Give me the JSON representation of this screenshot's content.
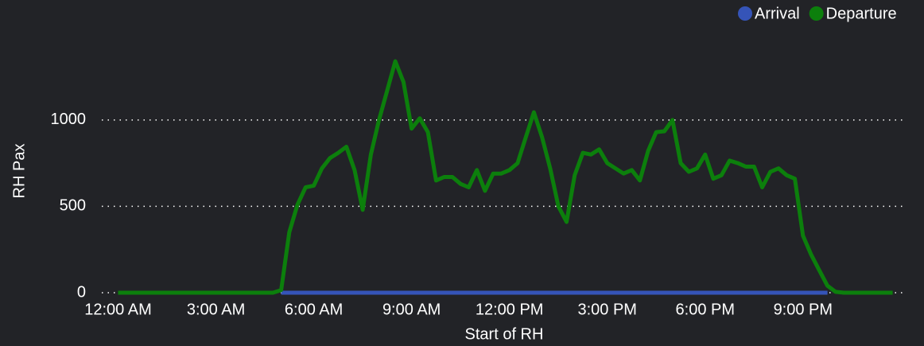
{
  "chart_data": {
    "type": "line",
    "x_label": "Start of RH",
    "y_label": "RH Pax",
    "x": [
      0,
      0.25,
      0.5,
      0.75,
      1,
      1.25,
      1.5,
      1.75,
      2,
      2.25,
      2.5,
      2.75,
      3,
      3.25,
      3.5,
      3.75,
      4,
      4.25,
      4.5,
      4.75,
      5,
      5.25,
      5.5,
      5.75,
      6,
      6.25,
      6.5,
      6.75,
      7,
      7.25,
      7.5,
      7.75,
      8,
      8.25,
      8.5,
      8.75,
      9,
      9.25,
      9.5,
      9.75,
      10,
      10.25,
      10.5,
      10.75,
      11,
      11.25,
      11.5,
      11.75,
      12,
      12.25,
      12.5,
      12.75,
      13,
      13.25,
      13.5,
      13.75,
      14,
      14.25,
      14.5,
      14.75,
      15,
      15.25,
      15.5,
      15.75,
      16,
      16.25,
      16.5,
      16.75,
      17,
      17.25,
      17.5,
      17.75,
      18,
      18.25,
      18.5,
      18.75,
      19,
      19.25,
      19.5,
      19.75,
      20,
      20.25,
      20.5,
      20.75,
      21,
      21.25,
      21.5,
      21.75,
      22,
      22.25,
      22.5,
      22.75,
      23,
      23.25,
      23.5,
      23.75
    ],
    "series": [
      {
        "name": "Arrival",
        "color": "#3554b8",
        "values": [
          null,
          null,
          null,
          null,
          null,
          null,
          null,
          null,
          null,
          null,
          null,
          null,
          null,
          null,
          null,
          null,
          null,
          null,
          null,
          null,
          0,
          0,
          0,
          0,
          0,
          0,
          0,
          0,
          0,
          0,
          0,
          0,
          0,
          0,
          0,
          0,
          0,
          0,
          0,
          0,
          0,
          0,
          0,
          0,
          0,
          0,
          0,
          0,
          0,
          0,
          0,
          0,
          0,
          0,
          0,
          0,
          0,
          0,
          0,
          0,
          0,
          0,
          0,
          0,
          0,
          0,
          0,
          0,
          0,
          0,
          0,
          0,
          0,
          0,
          0,
          0,
          0,
          0,
          0,
          0,
          0,
          0,
          0,
          0,
          0,
          0,
          0,
          0,
          null,
          null,
          null,
          null,
          null,
          null,
          null,
          null
        ]
      },
      {
        "name": "Departure",
        "color": "#0c7f0c",
        "values": [
          0,
          0,
          0,
          0,
          0,
          0,
          0,
          0,
          0,
          0,
          0,
          0,
          0,
          0,
          0,
          0,
          0,
          0,
          0,
          0,
          15,
          350,
          510,
          610,
          620,
          720,
          780,
          810,
          845,
          710,
          480,
          800,
          1000,
          1170,
          1340,
          1220,
          950,
          1010,
          930,
          650,
          670,
          670,
          630,
          610,
          710,
          590,
          690,
          690,
          710,
          750,
          900,
          1045,
          900,
          720,
          500,
          410,
          680,
          810,
          800,
          830,
          750,
          720,
          690,
          710,
          650,
          820,
          930,
          935,
          1000,
          750,
          700,
          720,
          800,
          660,
          680,
          765,
          750,
          730,
          730,
          610,
          700,
          720,
          680,
          660,
          330,
          220,
          130,
          40,
          5,
          0,
          0,
          0,
          0,
          0,
          0,
          0
        ]
      }
    ],
    "xlim": [
      -0.5,
      24.15
    ],
    "xticks": [
      {
        "value": 0,
        "label": "12:00 AM"
      },
      {
        "value": 3,
        "label": "3:00 AM"
      },
      {
        "value": 6,
        "label": "6:00 AM"
      },
      {
        "value": 9,
        "label": "9:00 AM"
      },
      {
        "value": 12,
        "label": "12:00 PM"
      },
      {
        "value": 15,
        "label": "3:00 PM"
      },
      {
        "value": 18,
        "label": "6:00 PM"
      },
      {
        "value": 21,
        "label": "9:00 PM"
      }
    ],
    "ylim": [
      0,
      1400
    ],
    "yticks": [
      0,
      500,
      1000
    ],
    "grid": true,
    "legend": "top-right"
  }
}
